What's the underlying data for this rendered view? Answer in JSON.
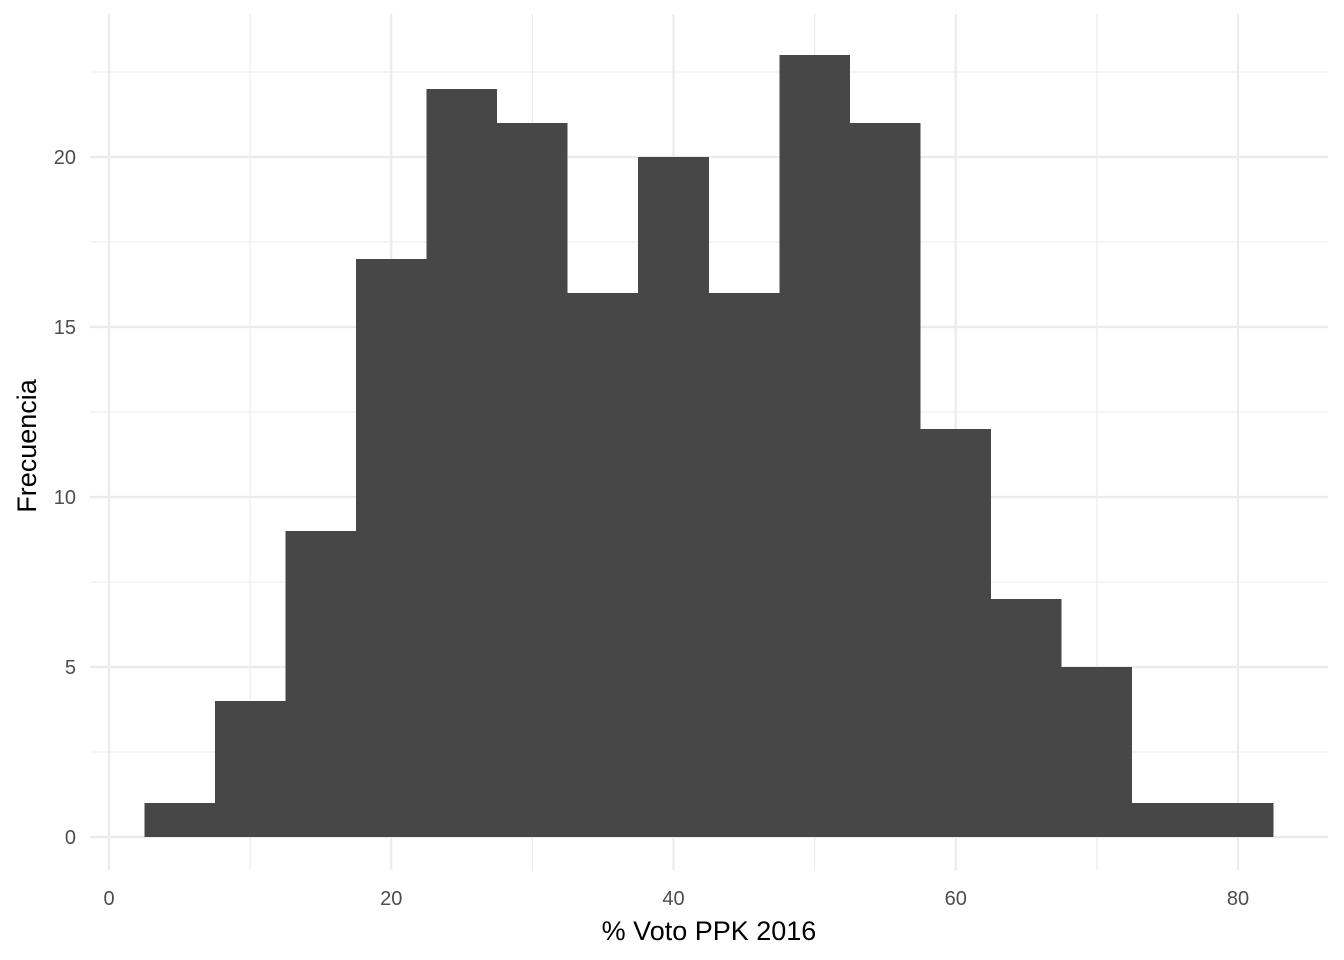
{
  "chart_data": {
    "type": "histogram",
    "xlabel": "% Voto PPK 2016",
    "ylabel": "Frecuencia",
    "xlim": [
      0,
      82.5
    ],
    "ylim": [
      0,
      23
    ],
    "xticks": [
      0,
      20,
      40,
      60,
      80
    ],
    "yticks": [
      0,
      5,
      10,
      15,
      20
    ],
    "x_minor_ticks": [
      10,
      30,
      50,
      70
    ],
    "y_minor_ticks": [
      2.5,
      7.5,
      12.5,
      17.5,
      22.5
    ],
    "grid": true,
    "bin_width": 5,
    "bins": [
      {
        "x0": 2.5,
        "x1": 7.5,
        "count": 1
      },
      {
        "x0": 7.5,
        "x1": 12.5,
        "count": 4
      },
      {
        "x0": 12.5,
        "x1": 17.5,
        "count": 9
      },
      {
        "x0": 17.5,
        "x1": 22.5,
        "count": 17
      },
      {
        "x0": 22.5,
        "x1": 27.5,
        "count": 22
      },
      {
        "x0": 27.5,
        "x1": 32.5,
        "count": 21
      },
      {
        "x0": 32.5,
        "x1": 37.5,
        "count": 16
      },
      {
        "x0": 37.5,
        "x1": 42.5,
        "count": 20
      },
      {
        "x0": 42.5,
        "x1": 47.5,
        "count": 16
      },
      {
        "x0": 47.5,
        "x1": 52.5,
        "count": 23
      },
      {
        "x0": 52.5,
        "x1": 57.5,
        "count": 21
      },
      {
        "x0": 57.5,
        "x1": 62.5,
        "count": 12
      },
      {
        "x0": 62.5,
        "x1": 67.5,
        "count": 7
      },
      {
        "x0": 67.5,
        "x1": 72.5,
        "count": 5
      },
      {
        "x0": 72.5,
        "x1": 77.5,
        "count": 1
      },
      {
        "x0": 77.5,
        "x1": 82.5,
        "count": 1
      }
    ],
    "colors": {
      "bar_fill": "#474747",
      "grid": "#ebebeb",
      "tick_text": "#4d4d4d",
      "background": "#ffffff"
    }
  }
}
